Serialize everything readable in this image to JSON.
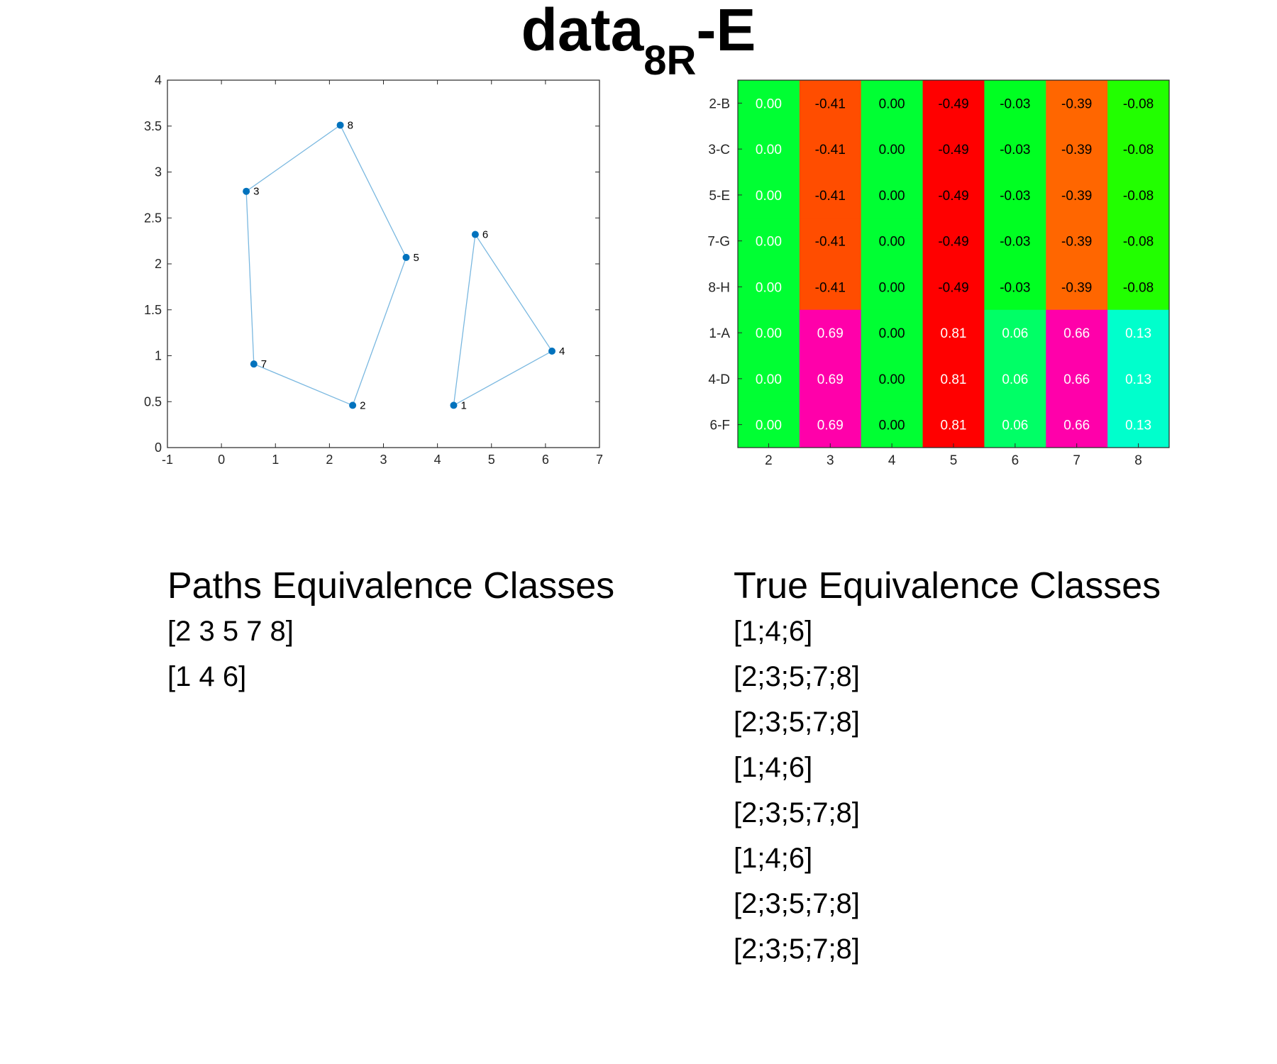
{
  "title": {
    "main": "data",
    "subscript": "8R",
    "suffix": "-E"
  },
  "chart_data": [
    {
      "type": "scatter",
      "title": "",
      "xlabel": "",
      "ylabel": "",
      "xlim": [
        -1,
        7
      ],
      "ylim": [
        0,
        4
      ],
      "xticks": [
        "-1",
        "0",
        "1",
        "2",
        "3",
        "4",
        "5",
        "6",
        "7"
      ],
      "yticks": [
        "0",
        "0.5",
        "1",
        "1.5",
        "2",
        "2.5",
        "3",
        "3.5",
        "4"
      ],
      "grid": false,
      "points": [
        {
          "label": "1",
          "x": 4.3,
          "y": 0.46
        },
        {
          "label": "2",
          "x": 2.43,
          "y": 0.46
        },
        {
          "label": "3",
          "x": 0.46,
          "y": 2.79
        },
        {
          "label": "4",
          "x": 6.12,
          "y": 1.05
        },
        {
          "label": "5",
          "x": 3.42,
          "y": 2.07
        },
        {
          "label": "6",
          "x": 4.7,
          "y": 2.32
        },
        {
          "label": "7",
          "x": 0.6,
          "y": 0.91
        },
        {
          "label": "8",
          "x": 2.2,
          "y": 3.51
        }
      ],
      "polygons": [
        [
          "8",
          "5",
          "2",
          "7",
          "3"
        ],
        [
          "6",
          "4",
          "1"
        ]
      ],
      "point_color": "#0072BD",
      "line_color": "#7AB8E0"
    },
    {
      "type": "heatmap",
      "title": "",
      "columns": [
        "2",
        "3",
        "4",
        "5",
        "6",
        "7",
        "8"
      ],
      "rows": [
        "2-B",
        "3-C",
        "5-E",
        "7-G",
        "8-H",
        "1-A",
        "4-D",
        "6-F"
      ],
      "values": [
        [
          0.0,
          -0.41,
          0.0,
          -0.49,
          -0.03,
          -0.39,
          -0.08
        ],
        [
          0.0,
          -0.41,
          0.0,
          -0.49,
          -0.03,
          -0.39,
          -0.08
        ],
        [
          0.0,
          -0.41,
          0.0,
          -0.49,
          -0.03,
          -0.39,
          -0.08
        ],
        [
          0.0,
          -0.41,
          0.0,
          -0.49,
          -0.03,
          -0.39,
          -0.08
        ],
        [
          0.0,
          -0.41,
          0.0,
          -0.49,
          -0.03,
          -0.39,
          -0.08
        ],
        [
          0.0,
          0.69,
          0.0,
          0.81,
          0.06,
          0.66,
          0.13
        ],
        [
          0.0,
          0.69,
          0.0,
          0.81,
          0.06,
          0.66,
          0.13
        ],
        [
          0.0,
          0.69,
          0.0,
          0.81,
          0.06,
          0.66,
          0.13
        ]
      ],
      "cell_labels": [
        [
          "0.00",
          "-0.41",
          "0.00",
          "-0.49",
          "-0.03",
          "-0.39",
          "-0.08"
        ],
        [
          "0.00",
          "-0.41",
          "0.00",
          "-0.49",
          "-0.03",
          "-0.39",
          "-0.08"
        ],
        [
          "0.00",
          "-0.41",
          "0.00",
          "-0.49",
          "-0.03",
          "-0.39",
          "-0.08"
        ],
        [
          "0.00",
          "-0.41",
          "0.00",
          "-0.49",
          "-0.03",
          "-0.39",
          "-0.08"
        ],
        [
          "0.00",
          "-0.41",
          "0.00",
          "-0.49",
          "-0.03",
          "-0.39",
          "-0.08"
        ],
        [
          "0.00",
          "0.69",
          "0.00",
          "0.81",
          "0.06",
          "0.66",
          "0.13"
        ],
        [
          "0.00",
          "0.69",
          "0.00",
          "0.81",
          "0.06",
          "0.66",
          "0.13"
        ],
        [
          "0.00",
          "0.69",
          "0.00",
          "0.81",
          "0.06",
          "0.66",
          "0.13"
        ]
      ],
      "cell_colors": [
        [
          "#00FF33",
          "#FF4D00",
          "#00FF33",
          "#FF0000",
          "#00FF22",
          "#FF6600",
          "#22FF00"
        ],
        [
          "#00FF33",
          "#FF4D00",
          "#00FF33",
          "#FF0000",
          "#00FF22",
          "#FF6600",
          "#22FF00"
        ],
        [
          "#00FF33",
          "#FF4D00",
          "#00FF33",
          "#FF0000",
          "#00FF22",
          "#FF6600",
          "#22FF00"
        ],
        [
          "#00FF33",
          "#FF4D00",
          "#00FF33",
          "#FF0000",
          "#00FF22",
          "#FF6600",
          "#22FF00"
        ],
        [
          "#00FF33",
          "#FF4D00",
          "#00FF33",
          "#FF0000",
          "#00FF22",
          "#FF6600",
          "#22FF00"
        ],
        [
          "#00FF33",
          "#FF00AA",
          "#00FF33",
          "#FF0000",
          "#00FF66",
          "#FF00AA",
          "#00FFCC"
        ],
        [
          "#00FF33",
          "#FF00AA",
          "#00FF33",
          "#FF0000",
          "#00FF66",
          "#FF00AA",
          "#00FFCC"
        ],
        [
          "#00FF33",
          "#FF00AA",
          "#00FF33",
          "#FF0000",
          "#00FF66",
          "#FF00AA",
          "#00FFCC"
        ]
      ],
      "cell_text_colors": [
        [
          "#FFFFFF",
          "#000000",
          "#000000",
          "#000000",
          "#000000",
          "#000000",
          "#000000"
        ],
        [
          "#FFFFFF",
          "#000000",
          "#000000",
          "#000000",
          "#000000",
          "#000000",
          "#000000"
        ],
        [
          "#FFFFFF",
          "#000000",
          "#000000",
          "#000000",
          "#000000",
          "#000000",
          "#000000"
        ],
        [
          "#FFFFFF",
          "#000000",
          "#000000",
          "#000000",
          "#000000",
          "#000000",
          "#000000"
        ],
        [
          "#FFFFFF",
          "#000000",
          "#000000",
          "#000000",
          "#000000",
          "#000000",
          "#000000"
        ],
        [
          "#FFFFFF",
          "#FFFFFF",
          "#000000",
          "#FFFFFF",
          "#FFFFFF",
          "#FFFFFF",
          "#FFFFFF"
        ],
        [
          "#FFFFFF",
          "#FFFFFF",
          "#000000",
          "#FFFFFF",
          "#FFFFFF",
          "#FFFFFF",
          "#FFFFFF"
        ],
        [
          "#FFFFFF",
          "#FFFFFF",
          "#000000",
          "#FFFFFF",
          "#FFFFFF",
          "#FFFFFF",
          "#FFFFFF"
        ]
      ]
    }
  ],
  "paths_classes": {
    "heading": "Paths Equivalence Classes",
    "items": [
      "[2 3 5 7 8]",
      "[1 4 6]"
    ]
  },
  "true_classes": {
    "heading": "True Equivalence Classes",
    "items": [
      "[1;4;6]",
      "[2;3;5;7;8]",
      "[2;3;5;7;8]",
      "[1;4;6]",
      "[2;3;5;7;8]",
      "[1;4;6]",
      "[2;3;5;7;8]",
      "[2;3;5;7;8]"
    ]
  }
}
